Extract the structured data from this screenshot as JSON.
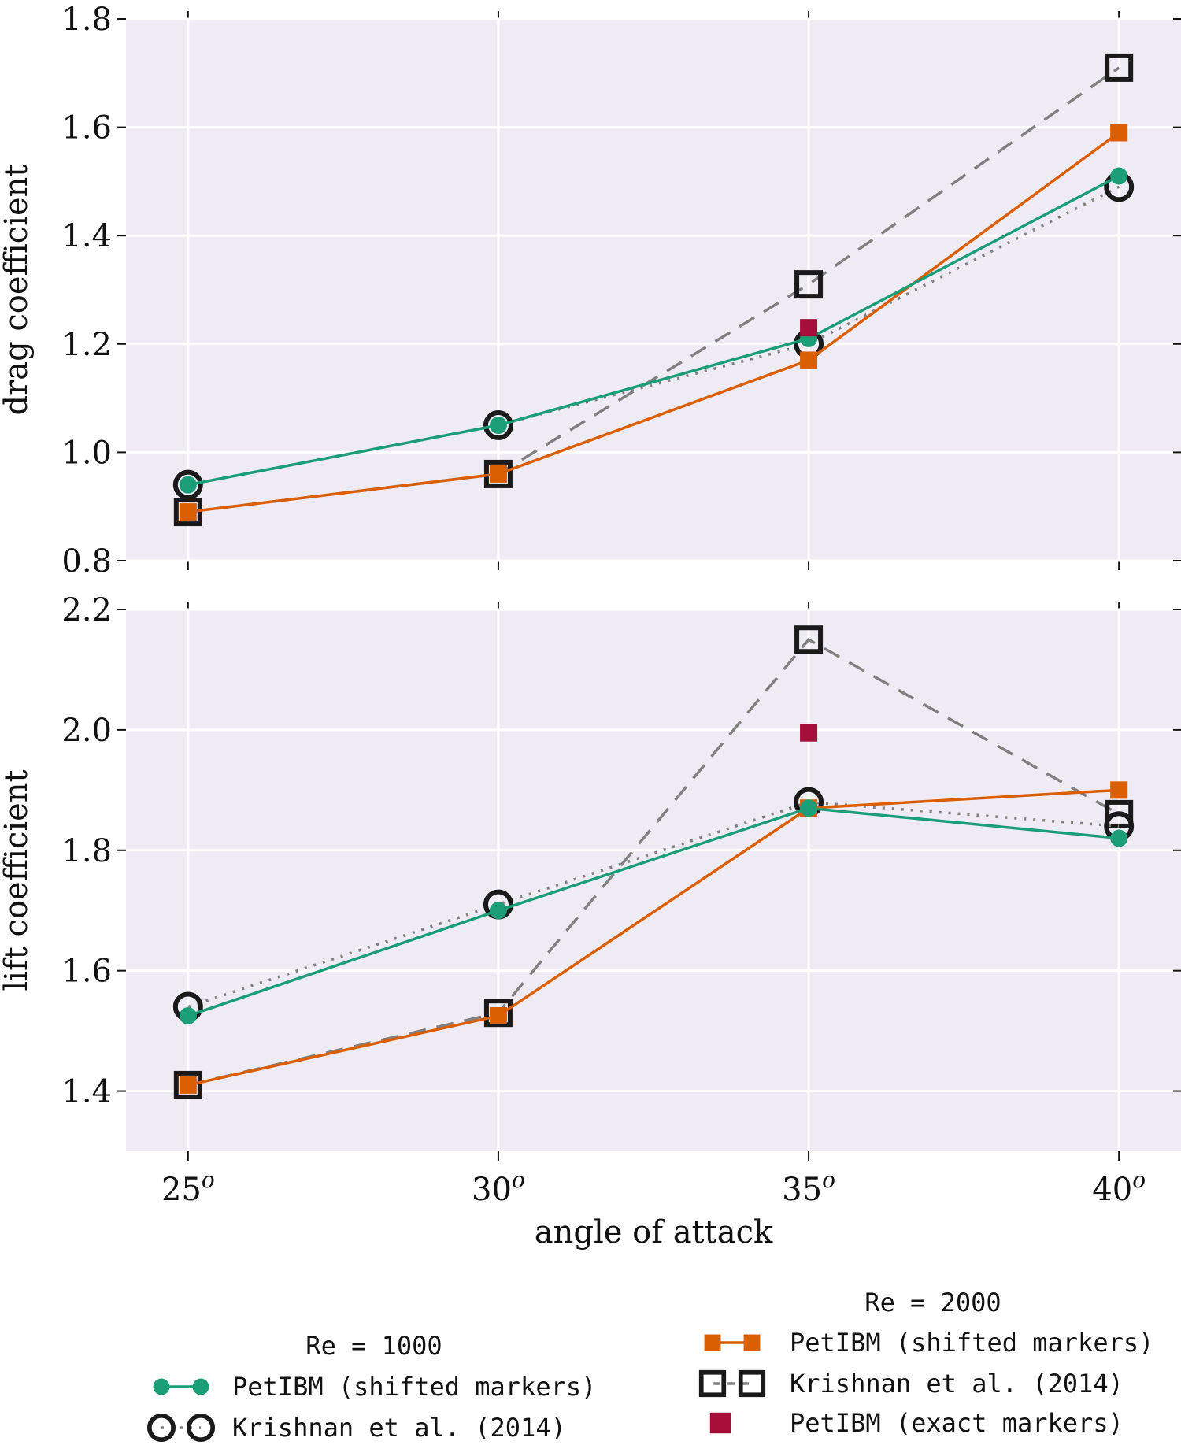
{
  "chart_data": {
    "type": "line",
    "x": [
      25,
      30,
      35,
      40
    ],
    "xtick_labels": [
      "25",
      "30",
      "35",
      "40"
    ],
    "xtick_suffix": "o",
    "xlabel": "angle of attack",
    "xlim": [
      24,
      41
    ],
    "grid": true,
    "colors": {
      "re1000": "#1b9e77",
      "re2000": "#d95f02",
      "exact": "#a50f3a",
      "krishnan": "#1a1a1a",
      "ref_line": "#808080",
      "axes_bg": "#eeebf4",
      "grid": "#ffffff"
    },
    "panels": [
      {
        "id": "drag",
        "ylabel": "drag coefficient",
        "ylim": [
          0.8,
          1.8
        ],
        "yticks": [
          "0.8",
          "1.0",
          "1.2",
          "1.4",
          "1.6",
          "1.8"
        ],
        "series": [
          {
            "key": "petibm_1000",
            "x": [
              25,
              30,
              35,
              40
            ],
            "y": [
              0.94,
              1.05,
              1.21,
              1.51
            ]
          },
          {
            "key": "krishnan_1000",
            "x": [
              25,
              30,
              35,
              40
            ],
            "y": [
              0.94,
              1.05,
              1.2,
              1.49
            ]
          },
          {
            "key": "petibm_2000",
            "x": [
              25,
              30,
              35,
              40
            ],
            "y": [
              0.89,
              0.96,
              1.17,
              1.59
            ]
          },
          {
            "key": "krishnan_2000",
            "x": [
              25,
              30,
              35,
              40
            ],
            "y": [
              0.89,
              0.96,
              1.31,
              1.71
            ]
          },
          {
            "key": "exact_2000",
            "x": [
              35
            ],
            "y": [
              1.23
            ]
          }
        ]
      },
      {
        "id": "lift",
        "ylabel": "lift coefficient",
        "ylim": [
          1.3,
          2.2
        ],
        "yticks": [
          "1.4",
          "1.6",
          "1.8",
          "2.0",
          "2.2"
        ],
        "series": [
          {
            "key": "petibm_1000",
            "x": [
              25,
              30,
              35,
              40
            ],
            "y": [
              1.525,
              1.7,
              1.87,
              1.82
            ]
          },
          {
            "key": "krishnan_1000",
            "x": [
              25,
              30,
              35,
              40
            ],
            "y": [
              1.54,
              1.71,
              1.88,
              1.84
            ]
          },
          {
            "key": "petibm_2000",
            "x": [
              25,
              30,
              35,
              40
            ],
            "y": [
              1.41,
              1.525,
              1.87,
              1.9
            ]
          },
          {
            "key": "krishnan_2000",
            "x": [
              25,
              30,
              35,
              40
            ],
            "y": [
              1.41,
              1.53,
              2.15,
              1.86
            ]
          },
          {
            "key": "exact_2000",
            "x": [
              35
            ],
            "y": [
              1.995
            ]
          }
        ]
      }
    ],
    "legend": {
      "placement": "below",
      "groups": [
        {
          "title": "Re = 1000",
          "entries": [
            {
              "key": "petibm_1000",
              "label": "PetIBM (shifted markers)"
            },
            {
              "key": "krishnan_1000",
              "label": "Krishnan et al. (2014)"
            }
          ]
        },
        {
          "title": "Re = 2000",
          "entries": [
            {
              "key": "petibm_2000",
              "label": "PetIBM (shifted markers)"
            },
            {
              "key": "krishnan_2000",
              "label": "Krishnan et al. (2014)"
            },
            {
              "key": "exact_2000",
              "label": "PetIBM (exact markers)"
            }
          ]
        }
      ]
    }
  }
}
